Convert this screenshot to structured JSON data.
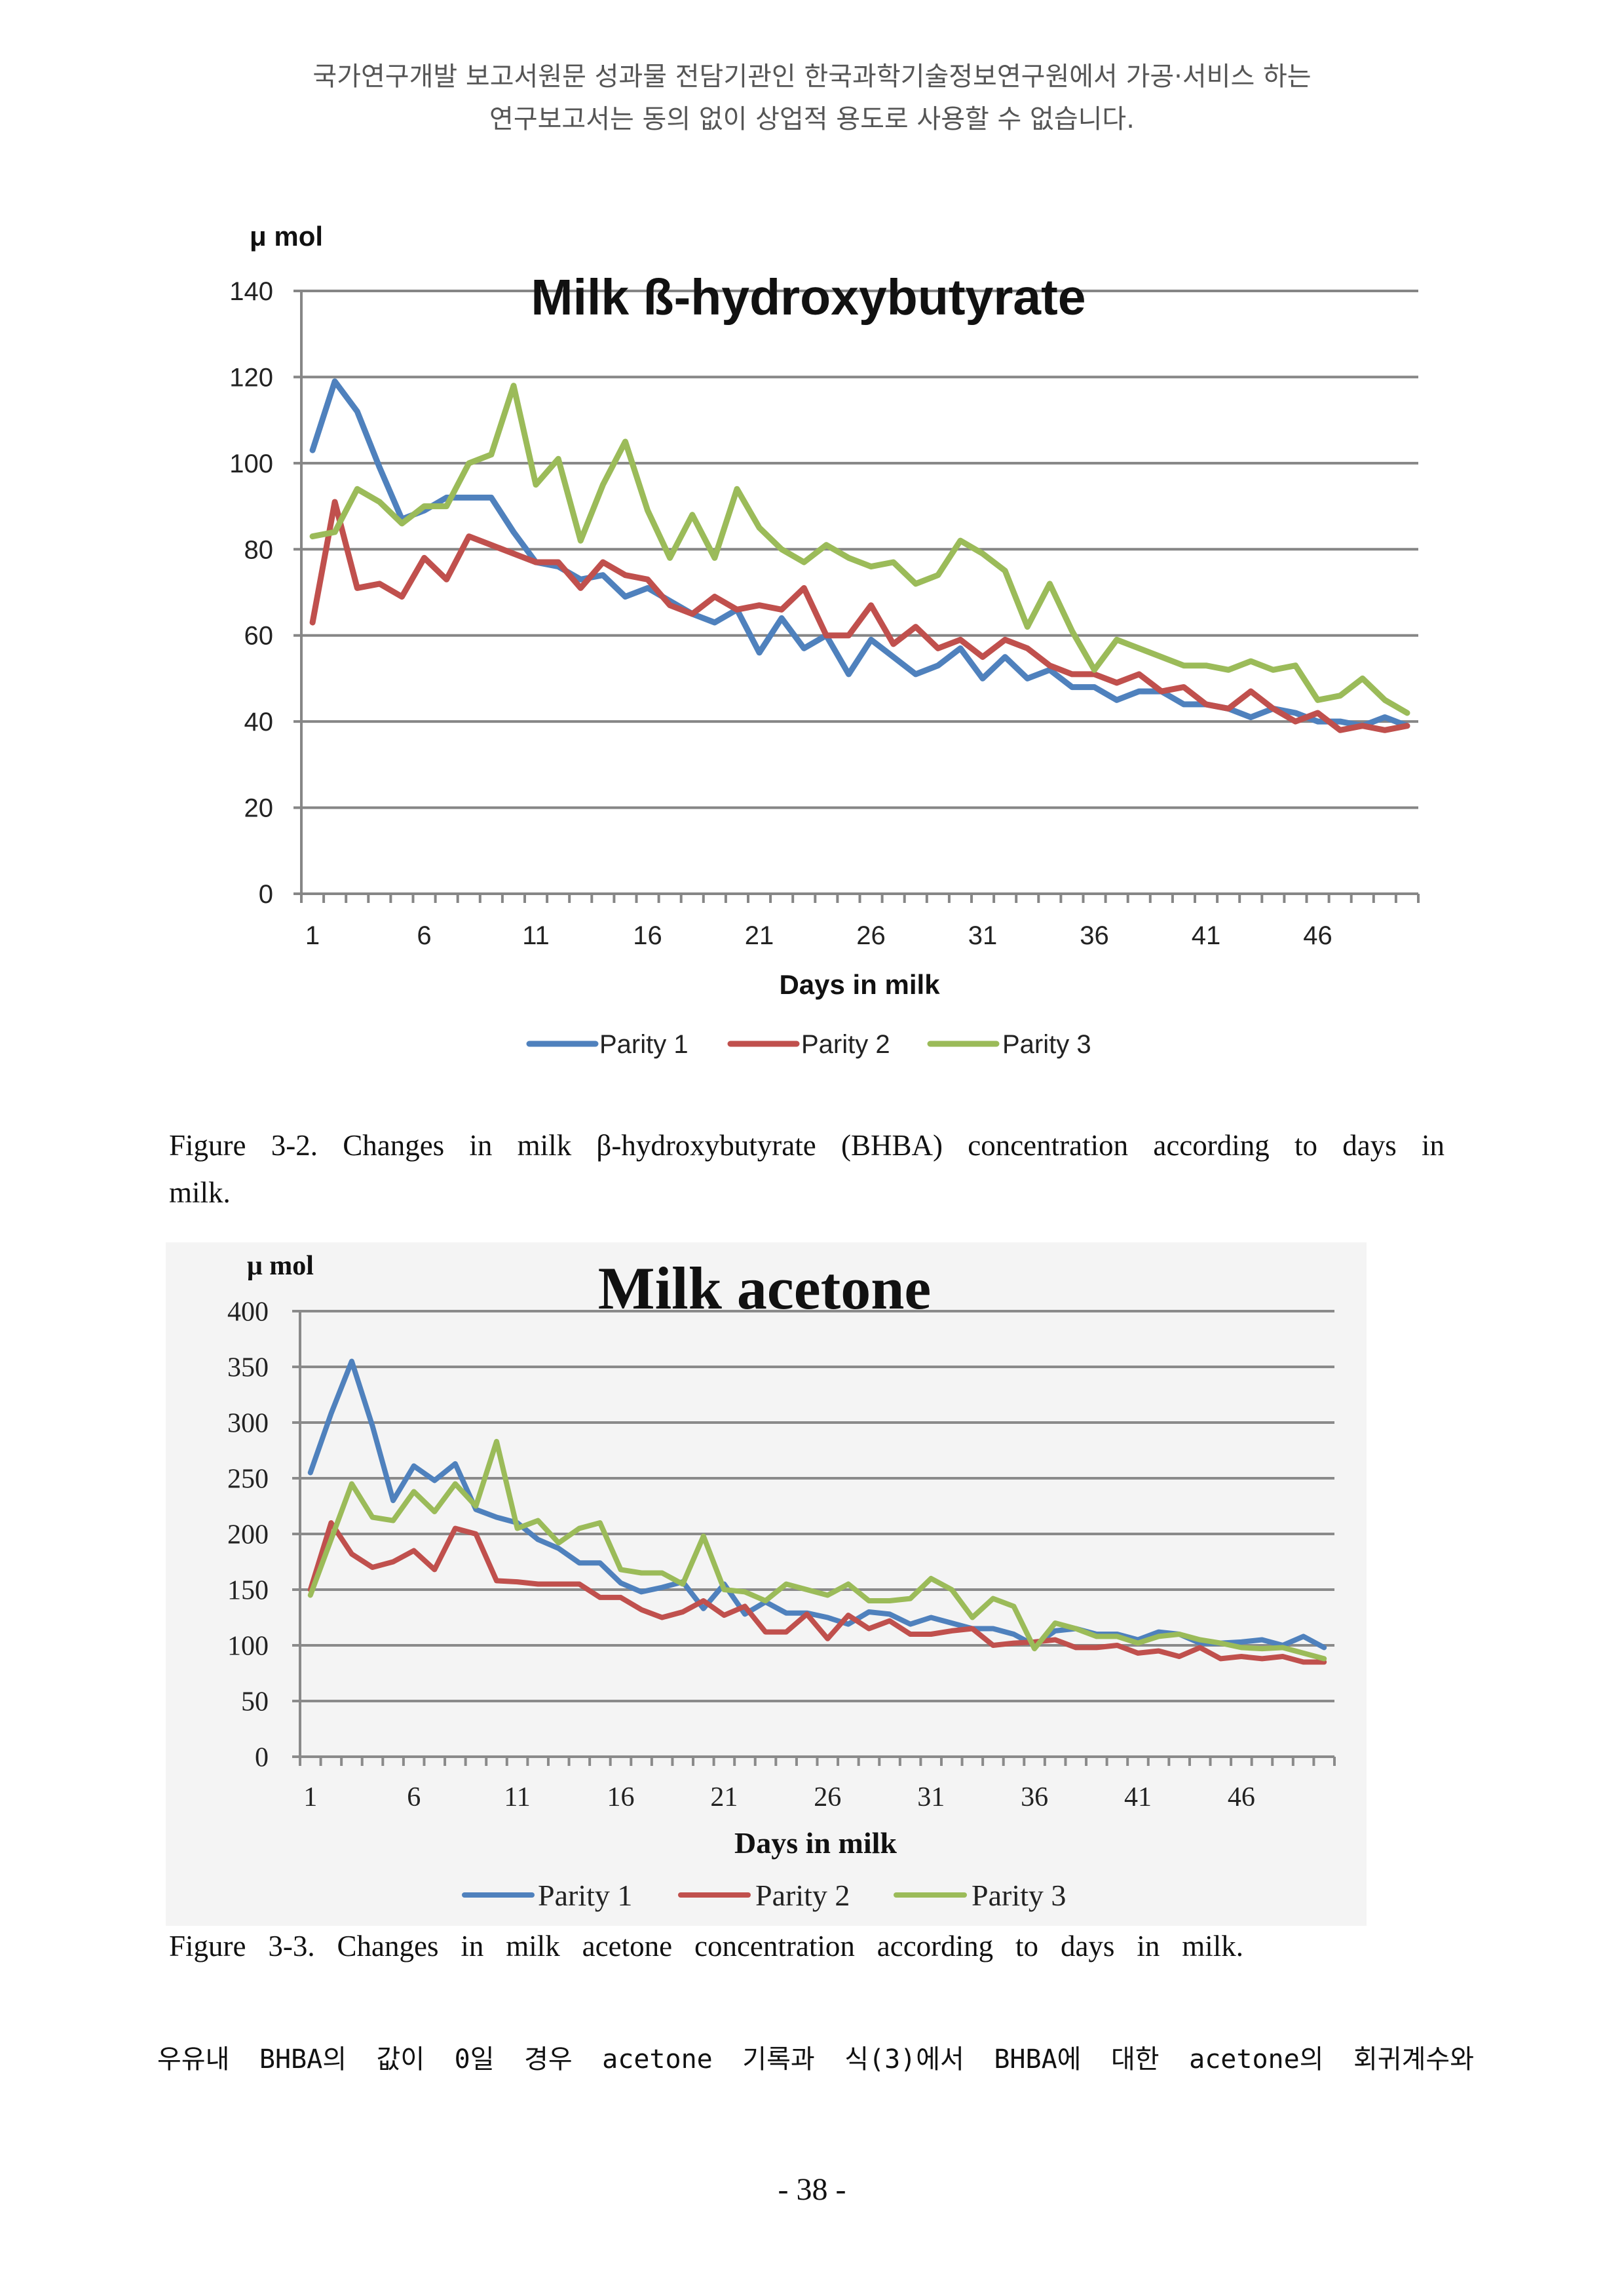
{
  "page": {
    "header_line1": "국가연구개발 보고서원문 성과물 전담기관인 한국과학기술정보연구원에서 가공·서비스 하는",
    "header_line2": "연구보고서는 동의 없이 상업적 용도로 사용할 수 없습니다.",
    "figure1_caption_line1": "Figure 3-2. Changes in milk β-hydroxybutyrate (BHBA) concentration according to days in",
    "figure1_caption_line2": "milk.",
    "figure2_caption": "Figure 3-3. Changes in milk acetone concentration according to days in milk.",
    "body_text": "우유내 BHBA의 값이 0일 경우 acetone 기록과 식(3)에서 BHBA에 대한 acetone의 회귀계수와",
    "page_number": "- 38 -"
  },
  "chart_data": [
    {
      "type": "line",
      "title": "Milk ß-hydroxybutyrate",
      "ylabel": "μ mol",
      "xlabel": "Days in milk",
      "x": [
        1,
        2,
        3,
        4,
        5,
        6,
        7,
        8,
        9,
        10,
        11,
        12,
        13,
        14,
        15,
        16,
        17,
        18,
        19,
        20,
        21,
        22,
        23,
        24,
        25,
        26,
        27,
        28,
        29,
        30,
        31,
        32,
        33,
        34,
        35,
        36,
        37,
        38,
        39,
        40,
        41,
        42,
        43,
        44,
        45,
        46,
        47,
        48,
        49,
        50
      ],
      "x_tick_labels": [
        "1",
        "6",
        "11",
        "16",
        "21",
        "26",
        "31",
        "36",
        "41",
        "46"
      ],
      "y_tick_labels": [
        "0",
        "20",
        "40",
        "60",
        "80",
        "100",
        "120",
        "140"
      ],
      "ylim": [
        0,
        140
      ],
      "grid": true,
      "legend": "bottom",
      "series": [
        {
          "name": "Parity 1",
          "color": "#4F81BD",
          "values": [
            103,
            119,
            112,
            99,
            87,
            89,
            92,
            92,
            92,
            84,
            77,
            76,
            73,
            74,
            69,
            71,
            68,
            65,
            63,
            66,
            56,
            64,
            57,
            60,
            51,
            59,
            55,
            51,
            53,
            57,
            50,
            55,
            50,
            52,
            48,
            48,
            45,
            47,
            47,
            44,
            44,
            43,
            41,
            43,
            42,
            40,
            40,
            39,
            41,
            39
          ]
        },
        {
          "name": "Parity 2",
          "color": "#C0504D",
          "values": [
            63,
            91,
            71,
            72,
            69,
            78,
            73,
            83,
            81,
            79,
            77,
            77,
            71,
            77,
            74,
            73,
            67,
            65,
            69,
            66,
            67,
            66,
            71,
            60,
            60,
            67,
            58,
            62,
            57,
            59,
            55,
            59,
            57,
            53,
            51,
            51,
            49,
            51,
            47,
            48,
            44,
            43,
            47,
            43,
            40,
            42,
            38,
            39,
            38,
            39
          ]
        },
        {
          "name": "Parity 3",
          "color": "#9BBB59",
          "values": [
            83,
            84,
            94,
            91,
            86,
            90,
            90,
            100,
            102,
            118,
            95,
            101,
            82,
            95,
            105,
            89,
            78,
            88,
            78,
            94,
            85,
            80,
            77,
            81,
            78,
            76,
            77,
            72,
            74,
            82,
            79,
            75,
            62,
            72,
            61,
            52,
            59,
            57,
            55,
            53,
            53,
            52,
            54,
            52,
            53,
            45,
            46,
            50,
            45,
            42
          ]
        }
      ]
    },
    {
      "type": "line",
      "title": "Milk acetone",
      "ylabel": "μ mol",
      "xlabel": "Days in milk",
      "x": [
        1,
        2,
        3,
        4,
        5,
        6,
        7,
        8,
        9,
        10,
        11,
        12,
        13,
        14,
        15,
        16,
        17,
        18,
        19,
        20,
        21,
        22,
        23,
        24,
        25,
        26,
        27,
        28,
        29,
        30,
        31,
        32,
        33,
        34,
        35,
        36,
        37,
        38,
        39,
        40,
        41,
        42,
        43,
        44,
        45,
        46,
        47,
        48,
        49,
        50
      ],
      "x_tick_labels": [
        "1",
        "6",
        "11",
        "16",
        "21",
        "26",
        "31",
        "36",
        "41",
        "46"
      ],
      "y_tick_labels": [
        "0",
        "50",
        "100",
        "150",
        "200",
        "250",
        "300",
        "350",
        "400"
      ],
      "ylim": [
        0,
        400
      ],
      "grid": true,
      "legend": "bottom",
      "series": [
        {
          "name": "Parity 1",
          "color": "#4F81BD",
          "values": [
            255,
            308,
            355,
            297,
            230,
            261,
            248,
            263,
            222,
            215,
            210,
            195,
            187,
            174,
            174,
            156,
            148,
            152,
            157,
            133,
            155,
            128,
            139,
            129,
            129,
            125,
            119,
            130,
            128,
            119,
            125,
            120,
            115,
            115,
            110,
            100,
            113,
            115,
            110,
            110,
            105,
            112,
            110,
            102,
            102,
            103,
            105,
            100,
            108,
            98
          ]
        },
        {
          "name": "Parity 2",
          "color": "#C0504D",
          "values": [
            150,
            210,
            182,
            170,
            175,
            185,
            168,
            205,
            200,
            158,
            157,
            155,
            155,
            155,
            143,
            143,
            132,
            125,
            130,
            140,
            127,
            135,
            112,
            112,
            128,
            106,
            127,
            115,
            122,
            110,
            110,
            113,
            115,
            100,
            102,
            103,
            105,
            98,
            98,
            100,
            93,
            95,
            90,
            98,
            88,
            90,
            88,
            90,
            85,
            85
          ]
        },
        {
          "name": "Parity 3",
          "color": "#9BBB59",
          "values": [
            145,
            195,
            245,
            215,
            212,
            238,
            220,
            245,
            225,
            283,
            205,
            212,
            192,
            205,
            210,
            168,
            165,
            165,
            155,
            198,
            150,
            148,
            140,
            155,
            150,
            145,
            155,
            140,
            140,
            142,
            160,
            150,
            125,
            142,
            135,
            97,
            120,
            115,
            108,
            108,
            102,
            108,
            110,
            105,
            102,
            98,
            97,
            98,
            93,
            88
          ]
        }
      ]
    }
  ]
}
